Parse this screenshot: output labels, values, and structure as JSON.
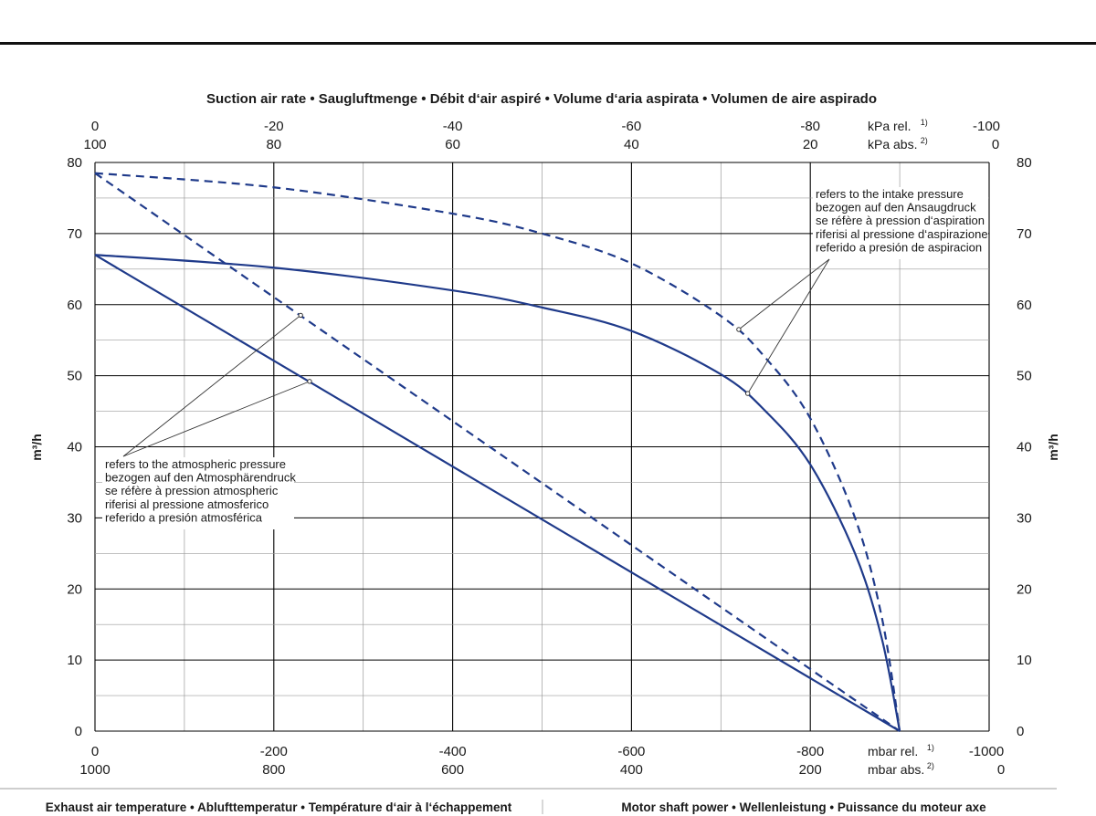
{
  "chart_data": {
    "type": "line",
    "title": "Suction air rate  •  Saugluftmenge  •  Débit d‘air aspiré  •  Volume d‘aria aspirata  •  Volumen de aire aspirado",
    "ylabel": "m³/h",
    "xlim": [
      0,
      -1000
    ],
    "ylim": [
      0,
      80
    ],
    "grid": true,
    "axes": {
      "bottom_rel": {
        "ticks": [
          0,
          -200,
          -400,
          -600,
          -800,
          -1000
        ],
        "tick_labels": [
          "0",
          "-200",
          "-400",
          "-600",
          "-800",
          "-1000"
        ],
        "unit": "mbar rel.",
        "unit_sup": "1)"
      },
      "bottom_abs": {
        "tick_labels": [
          "1000",
          "800",
          "600",
          "400",
          "200",
          "0"
        ],
        "unit": "mbar abs.",
        "unit_sup": "2)"
      },
      "top_rel": {
        "tick_labels": [
          "0",
          "-20",
          "-40",
          "-60",
          "-80",
          "-100"
        ],
        "unit": "kPa rel.",
        "unit_sup": "1)"
      },
      "top_abs": {
        "tick_labels": [
          "100",
          "80",
          "60",
          "40",
          "20",
          "0"
        ],
        "unit": "kPa abs.",
        "unit_sup": "2)"
      },
      "y_ticks": [
        0,
        10,
        20,
        30,
        40,
        50,
        60,
        70,
        80
      ],
      "y_tick_labels": [
        "0",
        "10",
        "20",
        "30",
        "40",
        "50",
        "60",
        "70",
        "80"
      ]
    },
    "series": [
      {
        "style": "solid",
        "x": [
          0,
          -200,
          -400,
          -500,
          -600,
          -700,
          -750,
          -800,
          -850,
          -880,
          -900
        ],
        "y": [
          67,
          65.2,
          62,
          59.6,
          56.3,
          50.2,
          45,
          37.5,
          25,
          13,
          0
        ]
      },
      {
        "style": "dashed",
        "x": [
          0,
          -200,
          -400,
          -500,
          -600,
          -700,
          -750,
          -800,
          -850,
          -880,
          -900
        ],
        "y": [
          78.5,
          76.5,
          72.8,
          70,
          65.8,
          58.4,
          52.5,
          44,
          30,
          16,
          0
        ]
      },
      {
        "style": "solid",
        "x": [
          0,
          -900
        ],
        "y": [
          67,
          0
        ]
      },
      {
        "style": "dashed",
        "x": [
          0,
          -900
        ],
        "y": [
          78.5,
          0
        ]
      }
    ],
    "annotations": {
      "intake": {
        "lines": [
          "refers to the intake pressure",
          "bezogen auf den Ansaugdruck",
          "se réfère à pression d‘aspiration",
          "riferisi al pressione d‘aspirazione",
          "referido a presión de aspiracion"
        ],
        "points": [
          {
            "x": -720,
            "y": 56.5
          },
          {
            "x": -730,
            "y": 47.5
          }
        ]
      },
      "atmospheric": {
        "lines": [
          "refers to the atmospheric pressure",
          "bezogen auf den Atmosphärendruck",
          "se réfère à pression atmospheric",
          "riferisi al pressione atmosferico",
          "referido a presión atmosférica"
        ],
        "points": [
          {
            "x": -230,
            "y": 58.5
          },
          {
            "x": -240,
            "y": 49.2
          }
        ]
      }
    },
    "colors": {
      "curve": "#1f3a8a",
      "grid": "#000000"
    }
  },
  "footer": {
    "left": "Exhaust air temperature  •  Ablufttemperatur  •  Température d‘air à l‘échappement",
    "right": "Motor shaft power  •  Wellenleistung  •  Puissance du moteur axe"
  }
}
